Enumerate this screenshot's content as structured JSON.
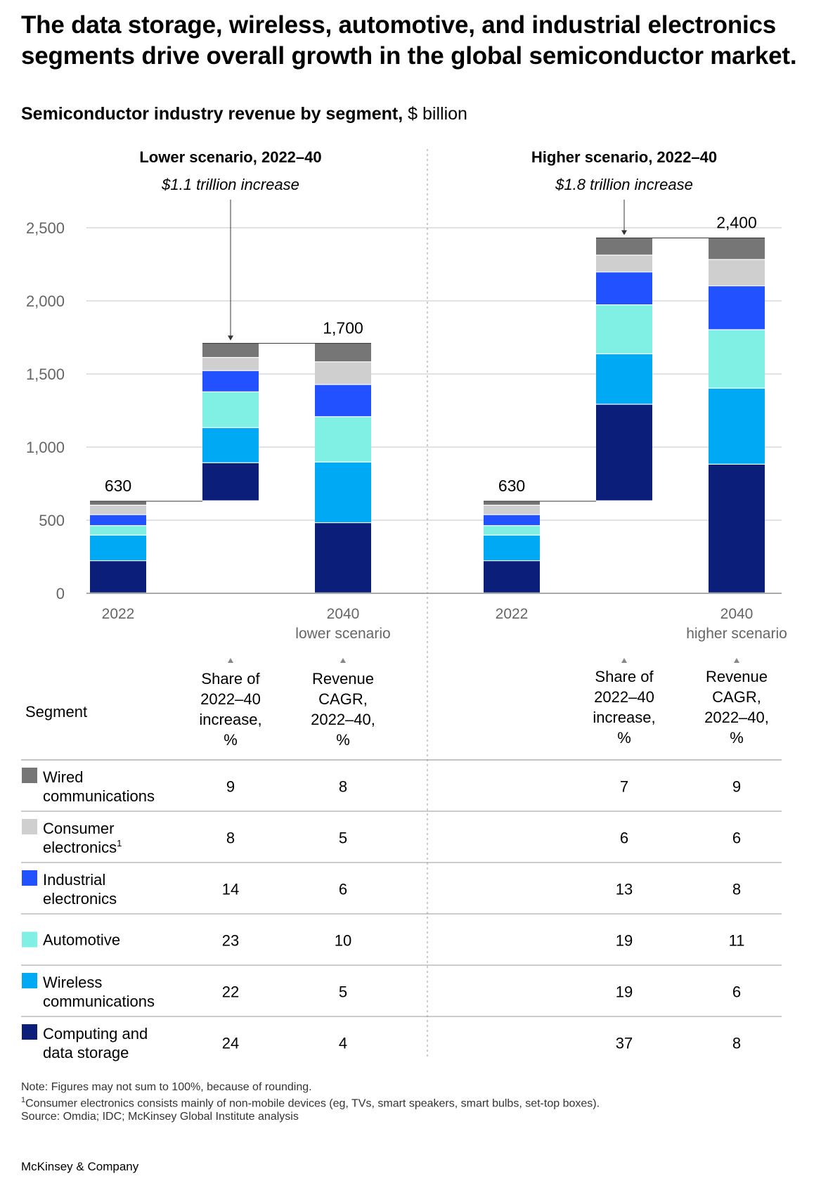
{
  "title": "The data storage, wireless, automotive, and industrial electronics segments drive overall growth in the global semiconductor market.",
  "subtitle_bold": "Semiconductor industry revenue by segment,",
  "subtitle_unit": "$ billion",
  "segments": [
    {
      "key": "wired",
      "label_lines": [
        "Wired",
        "communications"
      ],
      "color": "#767676"
    },
    {
      "key": "consumer",
      "label_lines": [
        "Consumer",
        "electronics"
      ],
      "footnote_mark": "1",
      "color": "#cfcfcf"
    },
    {
      "key": "industrial",
      "label_lines": [
        "Industrial",
        "electronics"
      ],
      "color": "#2251ff"
    },
    {
      "key": "automotive",
      "label_lines": [
        "Automotive"
      ],
      "color": "#7ff0e3"
    },
    {
      "key": "wireless",
      "label_lines": [
        "Wireless",
        "communications"
      ],
      "color": "#00a9f4"
    },
    {
      "key": "computing",
      "label_lines": [
        "Computing and",
        "data storage"
      ],
      "color": "#0b1f7a"
    }
  ],
  "chart_data": {
    "type": "bar",
    "subtype": "stacked-waterfall",
    "title": "Semiconductor industry revenue by segment, $ billion",
    "ylabel": "$ billion",
    "ylim": [
      0,
      2500
    ],
    "yticks": [
      "0",
      "500",
      "1,000",
      "1,500",
      "2,000",
      "2,500"
    ],
    "ytick_values": [
      0,
      500,
      1000,
      1500,
      2000,
      2500
    ],
    "series_order": [
      "computing",
      "wireless",
      "automotive",
      "industrial",
      "consumer",
      "wired"
    ],
    "panels": [
      {
        "header": "Lower scenario, 2022–40",
        "increase_label": "$1.1 trillion increase",
        "bars": [
          {
            "role": "base",
            "x_label": [
              "2022"
            ],
            "total_label": "630",
            "values": {
              "computing": 220,
              "wireless": 175,
              "automotive": 65,
              "industrial": 75,
              "consumer": 65,
              "wired": 30
            }
          },
          {
            "role": "increase",
            "x_label": [],
            "base": 630,
            "values": {
              "computing": 260,
              "wireless": 240,
              "automotive": 245,
              "industrial": 145,
              "consumer": 90,
              "wired": 100
            }
          },
          {
            "role": "end",
            "x_label": [
              "2040",
              "lower scenario"
            ],
            "total_label": "1,700",
            "values": {
              "computing": 480,
              "wireless": 415,
              "automotive": 310,
              "industrial": 220,
              "consumer": 155,
              "wired": 130
            }
          }
        ]
      },
      {
        "header": "Higher scenario, 2022–40",
        "increase_label": "$1.8 trillion increase",
        "bars": [
          {
            "role": "base",
            "x_label": [
              "2022"
            ],
            "total_label": "630",
            "values": {
              "computing": 220,
              "wireless": 175,
              "automotive": 65,
              "industrial": 75,
              "consumer": 65,
              "wired": 30
            }
          },
          {
            "role": "increase",
            "x_label": [],
            "base": 630,
            "values": {
              "computing": 660,
              "wireless": 345,
              "automotive": 335,
              "industrial": 225,
              "consumer": 115,
              "wired": 120
            }
          },
          {
            "role": "end",
            "x_label": [
              "2040",
              "higher scenario"
            ],
            "total_label": "2,400",
            "values": {
              "computing": 880,
              "wireless": 520,
              "automotive": 400,
              "industrial": 300,
              "consumer": 180,
              "wired": 150
            }
          }
        ]
      }
    ]
  },
  "table": {
    "segment_header": "Segment",
    "col_share_lines": [
      "Share of",
      "2022–40",
      "increase,",
      "%"
    ],
    "col_cagr_lines": [
      "Revenue",
      "CAGR,",
      "2022–40,",
      "%"
    ],
    "rows": [
      {
        "lower_share": "9",
        "lower_cagr": "8",
        "higher_share": "7",
        "higher_cagr": "9"
      },
      {
        "lower_share": "8",
        "lower_cagr": "5",
        "higher_share": "6",
        "higher_cagr": "6"
      },
      {
        "lower_share": "14",
        "lower_cagr": "6",
        "higher_share": "13",
        "higher_cagr": "8"
      },
      {
        "lower_share": "23",
        "lower_cagr": "10",
        "higher_share": "19",
        "higher_cagr": "11"
      },
      {
        "lower_share": "22",
        "lower_cagr": "5",
        "higher_share": "19",
        "higher_cagr": "6"
      },
      {
        "lower_share": "24",
        "lower_cagr": "4",
        "higher_share": "37",
        "higher_cagr": "8"
      }
    ]
  },
  "notes": {
    "note": "Note: Figures may not sum to 100%, because of rounding.",
    "footnote_mark": "1",
    "footnote": "Consumer electronics consists mainly of non-mobile devices (eg, TVs, smart speakers, smart bulbs, set-top boxes).",
    "source": "Source: Omdia; IDC; McKinsey Global Institute analysis"
  },
  "brand": "McKinsey & Company"
}
